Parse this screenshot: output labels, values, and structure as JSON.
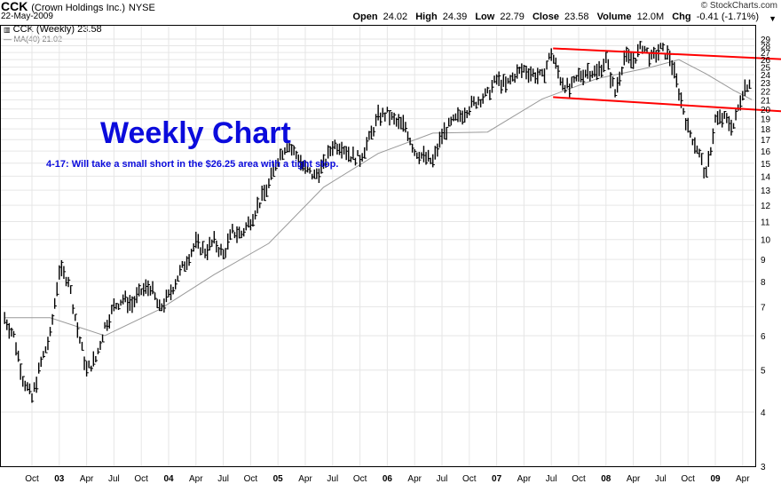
{
  "header": {
    "symbol": "CCK",
    "company": "(Crown Holdings Inc.)",
    "exchange": "NYSE",
    "date": "22-May-2009",
    "brand": "© StockCharts.com",
    "open_label": "Open",
    "open": "24.02",
    "high_label": "High",
    "high": "24.39",
    "low_label": "Low",
    "low": "22.79",
    "close_label": "Close",
    "close": "23.58",
    "volume_label": "Volume",
    "volume": "12.0M",
    "chg_label": "Chg",
    "chg": "-0.41 (-1.71%)"
  },
  "legend": {
    "price": "CCK (Weekly) 23.58",
    "ma": "MA(40) 21.02"
  },
  "annotation": {
    "title": "Weekly Chart",
    "note": "4-17: Will take a small short in the $26.25 area with a tight stop."
  },
  "colors": {
    "title": "#0b0bdc",
    "trendline": "#ff0000",
    "price": "#000000",
    "ma": "#999999"
  },
  "chart_data": {
    "type": "line",
    "x_tick_labels": [
      "Oct",
      "03",
      "Apr",
      "Jul",
      "Oct",
      "04",
      "Apr",
      "Jul",
      "Oct",
      "05",
      "Apr",
      "Jul",
      "Oct",
      "06",
      "Apr",
      "Jul",
      "Oct",
      "07",
      "Apr",
      "Jul",
      "Oct",
      "08",
      "Apr",
      "Jul",
      "Oct",
      "09",
      "Apr"
    ],
    "y_tick_labels": [
      "3",
      "4",
      "5",
      "6",
      "7",
      "8",
      "9",
      "10",
      "11",
      "12",
      "13",
      "14",
      "15",
      "16",
      "17",
      "18",
      "19",
      "20",
      "21",
      "22",
      "23",
      "24",
      "25",
      "26",
      "27",
      "28",
      "29"
    ],
    "ylim": [
      3,
      29.5
    ],
    "scale": "log",
    "grid": true,
    "series": [
      {
        "name": "CCK (Weekly)",
        "style": "price bars",
        "x": [
          "2002-07",
          "2002-08",
          "2002-09",
          "2002-10",
          "2002-11",
          "2002-12",
          "2003-01",
          "2003-02",
          "2003-03",
          "2003-04",
          "2003-05",
          "2003-06",
          "2003-07",
          "2003-08",
          "2003-09",
          "2003-10",
          "2003-11",
          "2003-12",
          "2004-01",
          "2004-02",
          "2004-03",
          "2004-04",
          "2004-05",
          "2004-06",
          "2004-07",
          "2004-08",
          "2004-09",
          "2004-10",
          "2004-11",
          "2004-12",
          "2005-01",
          "2005-02",
          "2005-03",
          "2005-04",
          "2005-05",
          "2005-06",
          "2005-07",
          "2005-08",
          "2005-09",
          "2005-10",
          "2005-11",
          "2005-12",
          "2006-01",
          "2006-02",
          "2006-03",
          "2006-04",
          "2006-05",
          "2006-06",
          "2006-07",
          "2006-08",
          "2006-09",
          "2006-10",
          "2006-11",
          "2006-12",
          "2007-01",
          "2007-02",
          "2007-03",
          "2007-04",
          "2007-05",
          "2007-06",
          "2007-07",
          "2007-08",
          "2007-09",
          "2007-10",
          "2007-11",
          "2007-12",
          "2008-01",
          "2008-02",
          "2008-03",
          "2008-04",
          "2008-05",
          "2008-06",
          "2008-07",
          "2008-08",
          "2008-09",
          "2008-10",
          "2008-11",
          "2008-12",
          "2009-01",
          "2009-02",
          "2009-03",
          "2009-04",
          "2009-05"
        ],
        "values": [
          6.6,
          6.0,
          4.8,
          4.3,
          5.2,
          6.0,
          8.5,
          8.1,
          6.2,
          5.0,
          5.3,
          6.3,
          7.0,
          7.3,
          7.1,
          7.6,
          7.8,
          6.9,
          7.4,
          8.2,
          9.0,
          9.8,
          9.4,
          9.9,
          9.2,
          10.4,
          10.3,
          11.1,
          12.2,
          13.4,
          15.4,
          16.6,
          15.7,
          14.5,
          14.0,
          14.8,
          16.5,
          16.5,
          15.6,
          15.4,
          17.0,
          19.2,
          19.5,
          18.6,
          18.2,
          16.0,
          15.5,
          15.1,
          17.4,
          18.5,
          19.3,
          20.2,
          21.0,
          21.6,
          23.4,
          22.6,
          24.0,
          24.7,
          24.1,
          23.7,
          27.0,
          23.5,
          22.1,
          23.8,
          24.5,
          24.2,
          26.0,
          21.8,
          26.3,
          25.9,
          28.0,
          26.1,
          27.5,
          26.4,
          22.0,
          18.0,
          16.3,
          14.0,
          18.9,
          19.0,
          18.3,
          22.0,
          23.6
        ]
      },
      {
        "name": "MA(40)",
        "x": [
          "2002-07",
          "2002-12",
          "2003-06",
          "2003-12",
          "2004-06",
          "2004-12",
          "2005-06",
          "2005-12",
          "2006-06",
          "2006-12",
          "2007-06",
          "2007-12",
          "2008-06",
          "2008-09",
          "2008-12",
          "2009-03",
          "2009-05"
        ],
        "values": [
          6.6,
          6.6,
          6.0,
          6.9,
          8.3,
          9.8,
          13.2,
          15.8,
          17.6,
          17.7,
          21.1,
          23.5,
          25.0,
          26.0,
          24.1,
          22.1,
          21.02
        ]
      }
    ],
    "trendlines": [
      {
        "x": [
          "2007-07",
          "2009-06"
        ],
        "values": [
          27.6,
          26.2
        ]
      },
      {
        "x": [
          "2007-07",
          "2009-06"
        ],
        "values": [
          21.3,
          19.9
        ]
      }
    ]
  }
}
